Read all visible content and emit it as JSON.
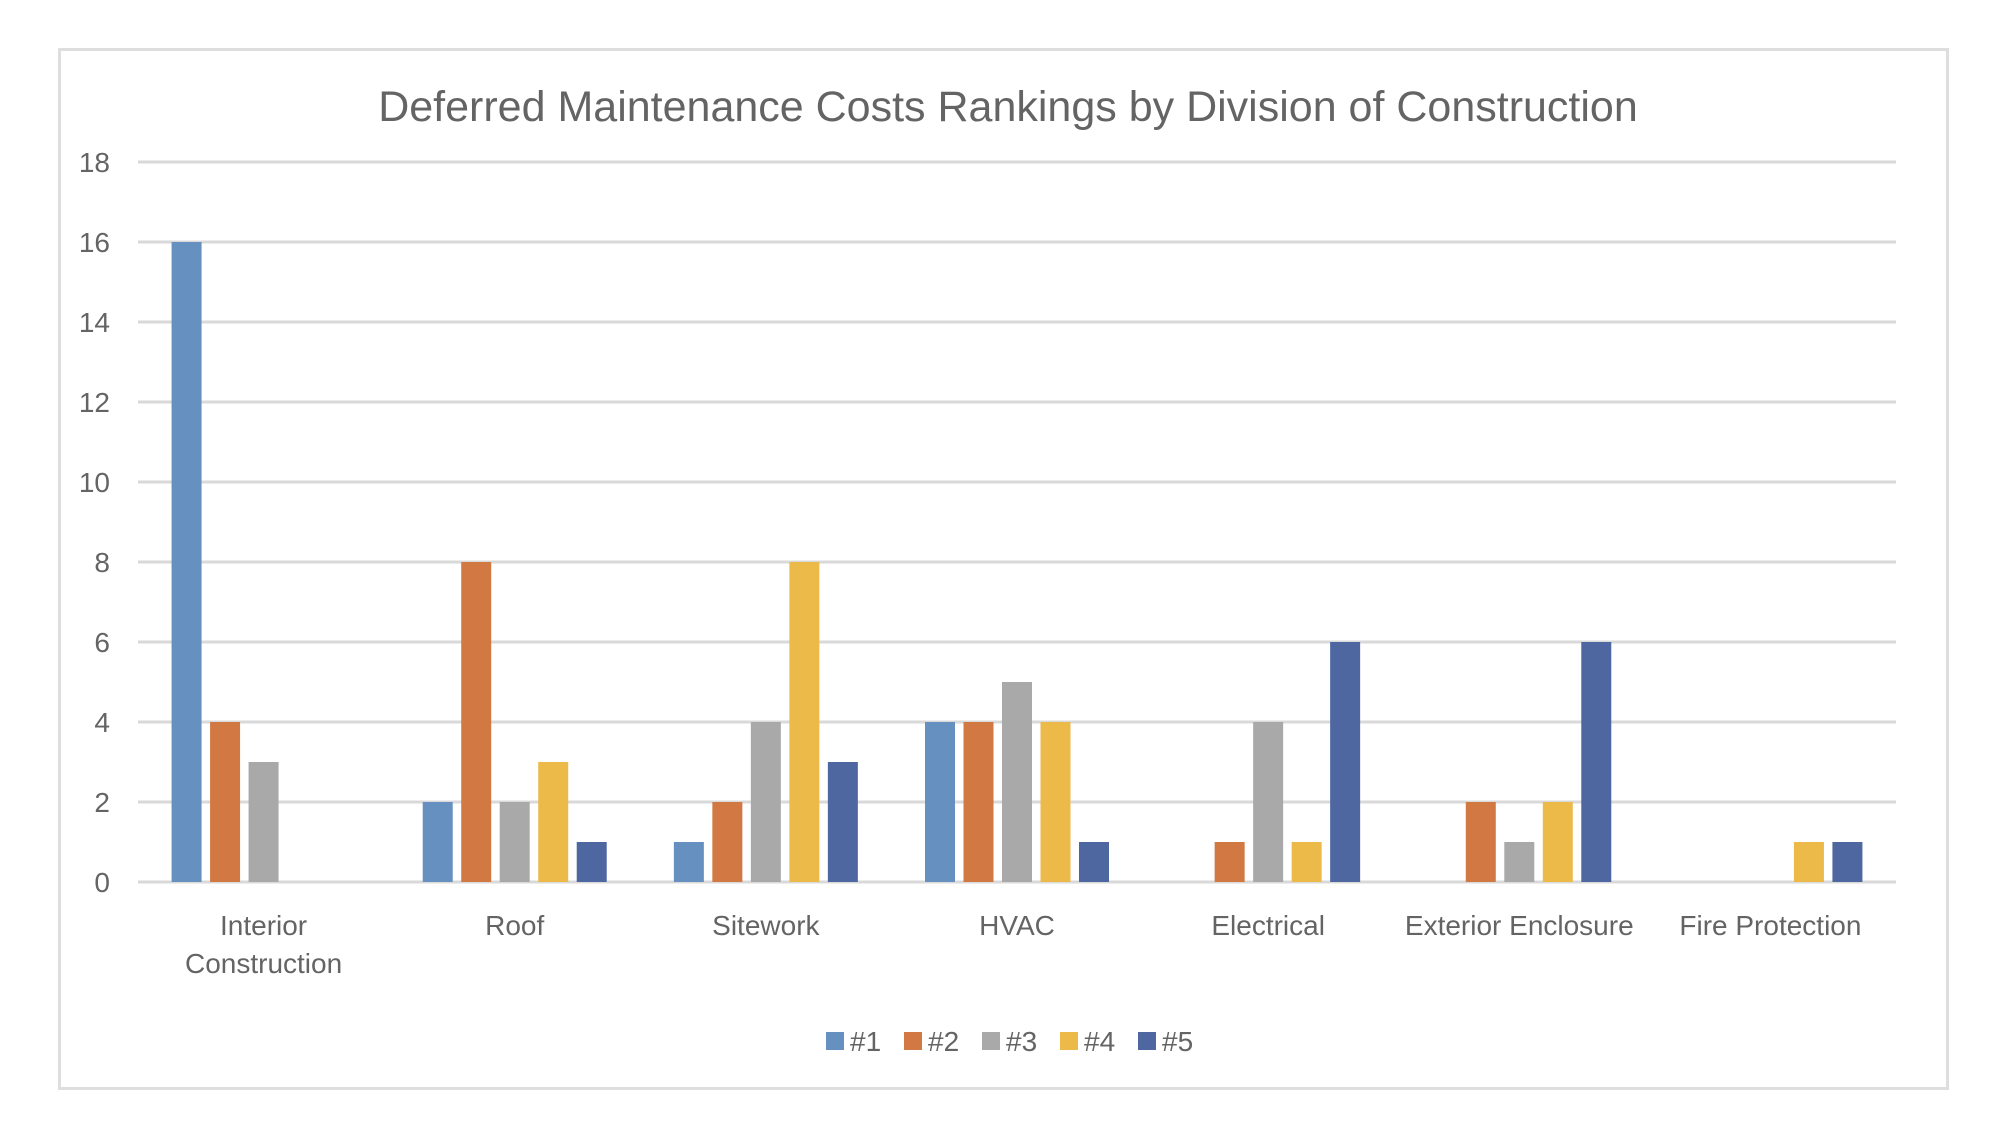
{
  "chart_data": {
    "type": "bar",
    "title": "Deferred Maintenance Costs Rankings by Division of Construction",
    "xlabel": "",
    "ylabel": "",
    "ylim": [
      0,
      18
    ],
    "yticks": [
      0,
      2,
      4,
      6,
      8,
      10,
      12,
      14,
      16,
      18
    ],
    "grid": true,
    "legend_position": "bottom",
    "categories": [
      [
        "Interior",
        "Construction"
      ],
      [
        "Roof"
      ],
      [
        "Sitework"
      ],
      [
        "HVAC"
      ],
      [
        "Electrical"
      ],
      [
        "Exterior Enclosure"
      ],
      [
        "Fire Protection"
      ]
    ],
    "series": [
      {
        "name": "#1",
        "color": "#6690bf",
        "values": [
          16,
          2,
          1,
          4,
          0,
          0,
          0
        ]
      },
      {
        "name": "#2",
        "color": "#d17843",
        "values": [
          4,
          8,
          2,
          4,
          1,
          2,
          0
        ]
      },
      {
        "name": "#3",
        "color": "#a9a9a9",
        "values": [
          3,
          2,
          4,
          5,
          4,
          1,
          0
        ]
      },
      {
        "name": "#4",
        "color": "#ecba48",
        "values": [
          0,
          3,
          8,
          4,
          1,
          2,
          1
        ]
      },
      {
        "name": "#5",
        "color": "#4e67a0",
        "values": [
          0,
          1,
          3,
          1,
          6,
          6,
          1
        ]
      }
    ]
  }
}
